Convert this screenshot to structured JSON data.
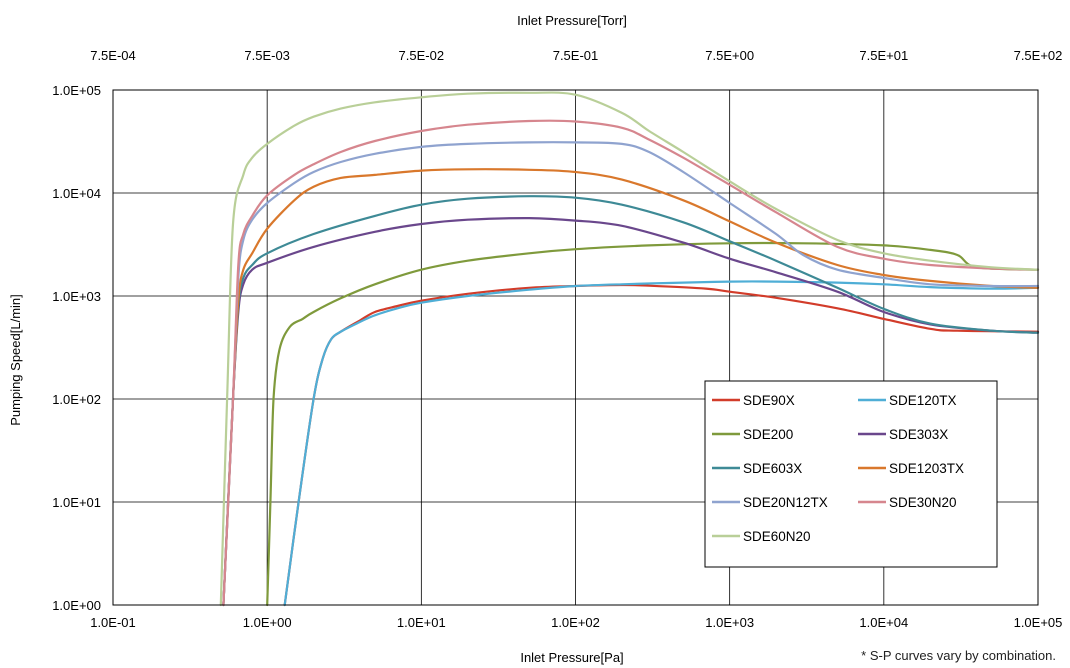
{
  "chart_data": {
    "type": "line",
    "x_scale": "log",
    "y_scale": "log",
    "xlabel": "Inlet Pressure[Pa]",
    "x2label": "Inlet Pressure[Torr]",
    "ylabel": "Pumping Speed[L/min]",
    "xlim": [
      0.1,
      100000
    ],
    "ylim": [
      1,
      100000
    ],
    "x_ticks": [
      0.1,
      1,
      10,
      100,
      1000,
      10000,
      100000
    ],
    "x_tick_labels": [
      "1.0E-01",
      "1.0E+00",
      "1.0E+01",
      "1.0E+02",
      "1.0E+03",
      "1.0E+04",
      "1.0E+05"
    ],
    "x2_ticks": [
      0.00075,
      0.0075,
      0.075,
      0.75,
      7.5,
      75,
      750
    ],
    "x2_tick_labels": [
      "7.5E-04",
      "7.5E-03",
      "7.5E-02",
      "7.5E-01",
      "7.5E+00",
      "7.5E+01",
      "7.5E+02"
    ],
    "y_ticks": [
      1,
      10,
      100,
      1000,
      10000,
      100000
    ],
    "y_tick_labels": [
      "1.0E+00",
      "1.0E+01",
      "1.0E+02",
      "1.0E+03",
      "1.0E+04",
      "1.0E+05"
    ],
    "grid": true,
    "legend_position": "lower-right",
    "series": [
      {
        "name": "SDE90X",
        "color": "#d23c2a",
        "x": [
          1.3,
          1.6,
          2,
          2.3,
          2.6,
          3,
          4,
          5,
          7,
          10,
          20,
          50,
          100,
          200,
          300,
          700,
          1000,
          2000,
          5000,
          10000,
          20000,
          30000,
          100000
        ],
        "y": [
          1,
          10,
          100,
          250,
          380,
          450,
          580,
          700,
          800,
          900,
          1050,
          1200,
          1250,
          1280,
          1260,
          1180,
          1100,
          960,
          760,
          600,
          480,
          460,
          450
        ]
      },
      {
        "name": "SDE120TX",
        "color": "#4faed6",
        "x": [
          1.3,
          1.6,
          2,
          2.3,
          2.6,
          3,
          4,
          5,
          7,
          10,
          20,
          50,
          100,
          200,
          500,
          1000,
          2000,
          5000,
          10000,
          20000,
          50000,
          100000
        ],
        "y": [
          1,
          10,
          100,
          250,
          380,
          450,
          560,
          650,
          760,
          860,
          1000,
          1150,
          1250,
          1300,
          1350,
          1380,
          1380,
          1350,
          1300,
          1220,
          1180,
          1200
        ]
      },
      {
        "name": "SDE200",
        "color": "#7f9a3c",
        "x": [
          1.0,
          1.05,
          1.1,
          1.2,
          1.4,
          1.7,
          2,
          3,
          5,
          10,
          20,
          50,
          100,
          300,
          1000,
          3000,
          10000,
          20000,
          30000,
          40000,
          100000
        ],
        "y": [
          1,
          10,
          100,
          300,
          500,
          600,
          700,
          950,
          1300,
          1800,
          2200,
          2600,
          2850,
          3100,
          3250,
          3250,
          3100,
          2800,
          2500,
          1900,
          1800
        ]
      },
      {
        "name": "SDE303X",
        "color": "#6a478c",
        "x": [
          0.52,
          0.6,
          0.65,
          0.7,
          0.8,
          1,
          2,
          5,
          10,
          20,
          50,
          100,
          200,
          500,
          1000,
          2000,
          5000,
          10000,
          20000,
          50000,
          100000
        ],
        "y": [
          1,
          100,
          700,
          1300,
          1800,
          2100,
          3000,
          4200,
          5000,
          5500,
          5700,
          5400,
          4800,
          3300,
          2300,
          1700,
          1100,
          700,
          530,
          460,
          440
        ]
      },
      {
        "name": "SDE603X",
        "color": "#3e8a96",
        "x": [
          0.52,
          0.6,
          0.65,
          0.7,
          0.8,
          1,
          2,
          5,
          10,
          20,
          50,
          100,
          200,
          500,
          1000,
          2000,
          5000,
          10000,
          20000,
          50000,
          100000
        ],
        "y": [
          1,
          100,
          800,
          1500,
          2000,
          2600,
          4000,
          6000,
          7700,
          8800,
          9300,
          9000,
          7700,
          5200,
          3400,
          2200,
          1200,
          750,
          540,
          460,
          440
        ]
      },
      {
        "name": "SDE1203TX",
        "color": "#d9782c",
        "x": [
          0.52,
          0.6,
          0.65,
          0.7,
          0.8,
          1,
          1.5,
          2,
          3,
          5,
          10,
          20,
          50,
          100,
          200,
          500,
          1000,
          2000,
          5000,
          10000,
          20000,
          50000,
          100000
        ],
        "y": [
          1,
          100,
          900,
          1800,
          2600,
          4500,
          8500,
          11500,
          14000,
          15000,
          16500,
          17000,
          16800,
          16000,
          13500,
          8500,
          5300,
          3300,
          2000,
          1600,
          1400,
          1250,
          1200
        ]
      },
      {
        "name": "SDE20N12TX",
        "color": "#8fa3cf",
        "x": [
          0.52,
          0.6,
          0.65,
          0.7,
          0.8,
          1,
          1.5,
          2,
          3,
          5,
          10,
          20,
          50,
          100,
          200,
          300,
          500,
          1000,
          2000,
          3000,
          5000,
          10000,
          20000,
          50000,
          100000
        ],
        "y": [
          1,
          100,
          1500,
          3500,
          5500,
          8000,
          12500,
          16000,
          20000,
          24000,
          28000,
          30000,
          31000,
          31000,
          30000,
          25000,
          16000,
          8000,
          4000,
          2500,
          1800,
          1500,
          1300,
          1250,
          1250
        ]
      },
      {
        "name": "SDE30N20",
        "color": "#d6868e",
        "x": [
          0.52,
          0.6,
          0.65,
          0.7,
          0.8,
          1,
          1.5,
          2,
          3,
          5,
          10,
          20,
          50,
          100,
          200,
          300,
          500,
          1000,
          2000,
          5000,
          10000,
          20000,
          50000,
          100000
        ],
        "y": [
          1,
          100,
          2000,
          4000,
          6000,
          9500,
          15000,
          19000,
          25000,
          32000,
          40000,
          46000,
          50000,
          49500,
          43000,
          33000,
          22000,
          12000,
          6500,
          3000,
          2300,
          2000,
          1850,
          1800
        ]
      },
      {
        "name": "SDE60N20",
        "color": "#b9cf98",
        "x": [
          0.5,
          0.55,
          0.6,
          0.7,
          0.8,
          1,
          1.5,
          2,
          3,
          5,
          10,
          20,
          50,
          100,
          200,
          300,
          500,
          1000,
          2000,
          5000,
          10000,
          20000,
          50000,
          100000
        ],
        "y": [
          1,
          100,
          5000,
          15000,
          22000,
          30000,
          45000,
          55000,
          66000,
          76000,
          85000,
          92000,
          94000,
          90000,
          60000,
          40000,
          25000,
          13000,
          7000,
          3500,
          2600,
          2200,
          1900,
          1800
        ]
      }
    ],
    "footnote": "* S-P curves vary by combination."
  }
}
